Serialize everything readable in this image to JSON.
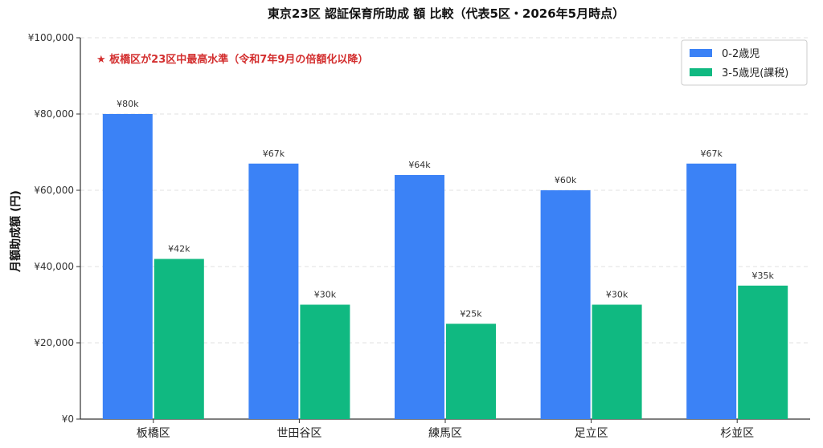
{
  "chart_data": {
    "type": "bar",
    "title": "東京23区 認証保育所助成 額 比較（代表5区・2026年5月時点）",
    "xlabel": "",
    "ylabel": "月額助成額 (円)",
    "ylim": [
      0,
      100000
    ],
    "yticks": [
      0,
      20000,
      40000,
      60000,
      80000,
      100000
    ],
    "ytick_labels": [
      "¥0",
      "¥20,000",
      "¥40,000",
      "¥60,000",
      "¥80,000",
      "¥100,000"
    ],
    "categories": [
      "板橋区",
      "世田谷区",
      "練馬区",
      "足立区",
      "杉並区"
    ],
    "series": [
      {
        "name": "0-2歳児",
        "color": "#3b82f6",
        "values": [
          80000,
          67000,
          64000,
          60000,
          67000
        ],
        "labels": [
          "¥80k",
          "¥67k",
          "¥64k",
          "¥60k",
          "¥67k"
        ]
      },
      {
        "name": "3-5歳児(課税)",
        "color": "#10b981",
        "values": [
          42000,
          30000,
          25000,
          30000,
          35000
        ],
        "labels": [
          "¥42k",
          "¥30k",
          "¥25k",
          "¥30k",
          "¥35k"
        ]
      }
    ],
    "annotation": "★ 板橋区が23区中最高水準（令和7年9月の倍額化以降）",
    "annotation_color": "#d32f2f",
    "grid": true,
    "legend_position": "top-right"
  }
}
